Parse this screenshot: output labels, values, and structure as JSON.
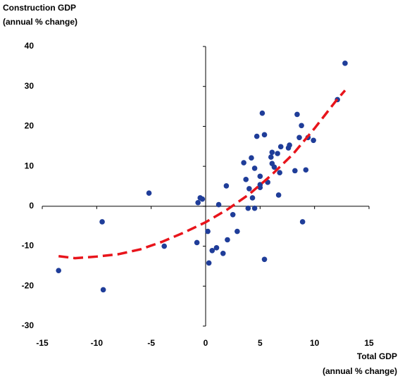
{
  "chart_data": {
    "type": "scatter",
    "ylabel": [
      "Construction GDP",
      "(annual % change)"
    ],
    "xlabel": [
      "Total GDP",
      "(annual % change)"
    ],
    "xlim": [
      -15,
      15
    ],
    "ylim": [
      -30,
      40
    ],
    "xticks": [
      -15,
      -10,
      -5,
      0,
      5,
      10,
      15
    ],
    "yticks": [
      -30,
      -20,
      -10,
      0,
      10,
      20,
      30,
      40
    ],
    "grid": false,
    "series": [
      {
        "type": "scatter",
        "color": "#1f3d99",
        "x": [
          -13.5,
          -9.5,
          -9.4,
          -5.2,
          -3.8,
          -0.8,
          -0.7,
          -0.5,
          -0.3,
          0.2,
          0.3,
          0.6,
          1.0,
          1.2,
          1.6,
          1.9,
          2.0,
          2.5,
          2.9,
          3.5,
          3.7,
          3.9,
          4.0,
          4.2,
          4.3,
          4.5,
          4.5,
          4.7,
          5.0,
          5.0,
          5.0,
          5.2,
          5.4,
          5.4,
          5.7,
          6.0,
          6.1,
          6.1,
          6.3,
          6.6,
          6.7,
          6.8,
          6.9,
          7.6,
          7.7,
          8.2,
          8.4,
          8.6,
          8.8,
          8.9,
          9.2,
          9.4,
          9.9,
          12.1,
          12.8
        ],
        "values": [
          -16.1,
          -3.9,
          -20.9,
          3.3,
          -10.0,
          -9.1,
          0.9,
          2.1,
          1.8,
          -6.3,
          -14.2,
          -11.1,
          -10.4,
          0.4,
          -11.8,
          5.1,
          -8.4,
          -2.1,
          -6.3,
          10.9,
          6.7,
          -0.5,
          4.4,
          12.1,
          2.1,
          -0.5,
          9.5,
          17.5,
          5.4,
          4.7,
          7.5,
          23.3,
          17.9,
          -13.3,
          6.0,
          12.3,
          13.5,
          10.7,
          9.8,
          13.2,
          2.8,
          8.4,
          14.9,
          14.6,
          15.3,
          8.9,
          23.0,
          17.2,
          20.2,
          -3.9,
          9.1,
          17.2,
          16.5,
          26.7,
          35.8
        ]
      },
      {
        "type": "line",
        "color": "#e8141b",
        "x": [
          -13.5,
          -12,
          -10,
          -8,
          -6,
          -4,
          -2,
          0,
          2,
          4,
          6,
          8,
          10,
          12,
          12.8
        ],
        "values": [
          -12.5,
          -13,
          -12.6,
          -12,
          -10.8,
          -8.9,
          -6.6,
          -4,
          -0.8,
          3,
          7.7,
          13,
          19.5,
          26.5,
          29
        ]
      }
    ]
  }
}
